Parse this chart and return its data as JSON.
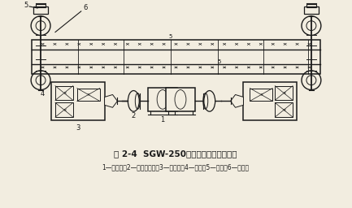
{
  "title": "图 2-4  SGW-250型刮板输送机传动系统",
  "caption": "1—电动机；2—液力联轴器；3—减速器；4—链轮；5—盲轴；6—刮板链",
  "bg_color": "#f2ede0",
  "line_color": "#1a1a1a",
  "fig_width": 4.33,
  "fig_height": 2.56,
  "dpi": 100
}
